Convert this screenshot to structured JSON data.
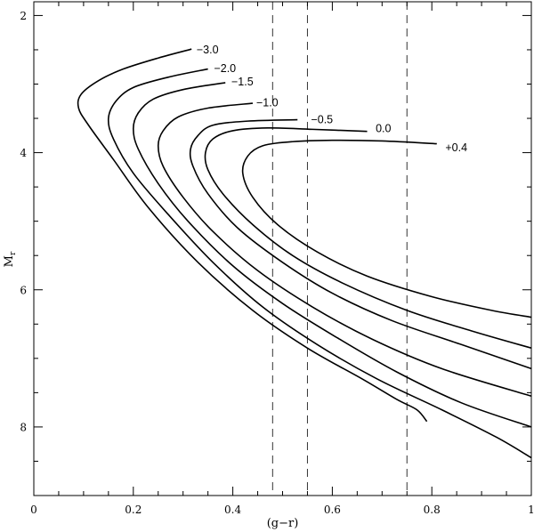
{
  "chart_data": {
    "type": "line",
    "title": "",
    "xlabel": "(g−r)",
    "ylabel_main": "M",
    "ylabel_sub": "r",
    "xlim": [
      0,
      1
    ],
    "ylim": [
      9,
      1.8
    ],
    "y_inverted": true,
    "grid": false,
    "x_ticks": [
      0,
      0.2,
      0.4,
      0.6,
      0.8,
      1
    ],
    "x_tick_labels": [
      "0",
      "0.2",
      "0.4",
      "0.6",
      "0.8",
      "1"
    ],
    "y_ticks": [
      2,
      4,
      6,
      8
    ],
    "y_tick_labels": [
      "2",
      "4",
      "6",
      "8"
    ],
    "vertical_lines": [
      0.48,
      0.55,
      0.75
    ],
    "series": [
      {
        "label": "−3.0",
        "label_at": [
          0.32,
          2.5
        ],
        "points": [
          [
            0.317,
            2.49
          ],
          [
            0.25,
            2.62
          ],
          [
            0.18,
            2.78
          ],
          [
            0.13,
            2.95
          ],
          [
            0.095,
            3.15
          ],
          [
            0.09,
            3.35
          ],
          [
            0.11,
            3.6
          ],
          [
            0.16,
            4.1
          ],
          [
            0.23,
            4.8
          ],
          [
            0.33,
            5.6
          ],
          [
            0.44,
            6.3
          ],
          [
            0.55,
            6.85
          ],
          [
            0.66,
            7.3
          ],
          [
            0.73,
            7.6
          ],
          [
            0.77,
            7.75
          ],
          [
            0.79,
            7.92
          ]
        ]
      },
      {
        "label": "−2.0",
        "label_at": [
          0.355,
          2.77
        ],
        "points": [
          [
            0.35,
            2.78
          ],
          [
            0.27,
            2.9
          ],
          [
            0.2,
            3.05
          ],
          [
            0.165,
            3.25
          ],
          [
            0.15,
            3.5
          ],
          [
            0.16,
            3.8
          ],
          [
            0.2,
            4.3
          ],
          [
            0.27,
            4.9
          ],
          [
            0.36,
            5.6
          ],
          [
            0.46,
            6.25
          ],
          [
            0.57,
            6.8
          ],
          [
            0.69,
            7.3
          ],
          [
            0.82,
            7.75
          ],
          [
            0.93,
            8.15
          ],
          [
            1.0,
            8.45
          ]
        ]
      },
      {
        "label": "−1.5",
        "label_at": [
          0.39,
          2.97
        ],
        "points": [
          [
            0.385,
            2.98
          ],
          [
            0.3,
            3.08
          ],
          [
            0.24,
            3.22
          ],
          [
            0.21,
            3.42
          ],
          [
            0.2,
            3.65
          ],
          [
            0.21,
            3.95
          ],
          [
            0.25,
            4.45
          ],
          [
            0.31,
            5.0
          ],
          [
            0.4,
            5.65
          ],
          [
            0.5,
            6.2
          ],
          [
            0.61,
            6.7
          ],
          [
            0.73,
            7.2
          ],
          [
            0.86,
            7.65
          ],
          [
            1.0,
            8.0
          ]
        ]
      },
      {
        "label": "−1.0",
        "label_at": [
          0.44,
          3.27
        ],
        "points": [
          [
            0.44,
            3.28
          ],
          [
            0.35,
            3.35
          ],
          [
            0.29,
            3.48
          ],
          [
            0.26,
            3.68
          ],
          [
            0.25,
            3.9
          ],
          [
            0.26,
            4.2
          ],
          [
            0.3,
            4.65
          ],
          [
            0.36,
            5.15
          ],
          [
            0.45,
            5.72
          ],
          [
            0.56,
            6.25
          ],
          [
            0.68,
            6.72
          ],
          [
            0.82,
            7.15
          ],
          [
            1.0,
            7.55
          ]
        ]
      },
      {
        "label": "−0.5",
        "label_at": [
          0.55,
          3.52
        ],
        "points": [
          [
            0.53,
            3.52
          ],
          [
            0.43,
            3.54
          ],
          [
            0.36,
            3.6
          ],
          [
            0.33,
            3.75
          ],
          [
            0.315,
            3.95
          ],
          [
            0.32,
            4.2
          ],
          [
            0.35,
            4.6
          ],
          [
            0.41,
            5.1
          ],
          [
            0.5,
            5.6
          ],
          [
            0.6,
            6.05
          ],
          [
            0.72,
            6.45
          ],
          [
            0.86,
            6.8
          ],
          [
            1.0,
            7.15
          ]
        ]
      },
      {
        "label": "0.0",
        "label_at": [
          0.68,
          3.65
        ],
        "points": [
          [
            0.67,
            3.69
          ],
          [
            0.56,
            3.66
          ],
          [
            0.47,
            3.64
          ],
          [
            0.4,
            3.68
          ],
          [
            0.36,
            3.8
          ],
          [
            0.345,
            4.0
          ],
          [
            0.35,
            4.25
          ],
          [
            0.38,
            4.6
          ],
          [
            0.44,
            5.05
          ],
          [
            0.52,
            5.5
          ],
          [
            0.62,
            5.9
          ],
          [
            0.75,
            6.3
          ],
          [
            0.88,
            6.6
          ],
          [
            1.0,
            6.85
          ]
        ]
      },
      {
        "label": "+0.4",
        "label_at": [
          0.82,
          3.93
        ],
        "points": [
          [
            0.81,
            3.87
          ],
          [
            0.7,
            3.83
          ],
          [
            0.6,
            3.82
          ],
          [
            0.52,
            3.84
          ],
          [
            0.46,
            3.9
          ],
          [
            0.43,
            4.05
          ],
          [
            0.42,
            4.3
          ],
          [
            0.44,
            4.65
          ],
          [
            0.49,
            5.05
          ],
          [
            0.57,
            5.45
          ],
          [
            0.67,
            5.8
          ],
          [
            0.8,
            6.1
          ],
          [
            0.92,
            6.3
          ],
          [
            1.0,
            6.4
          ]
        ]
      }
    ]
  }
}
